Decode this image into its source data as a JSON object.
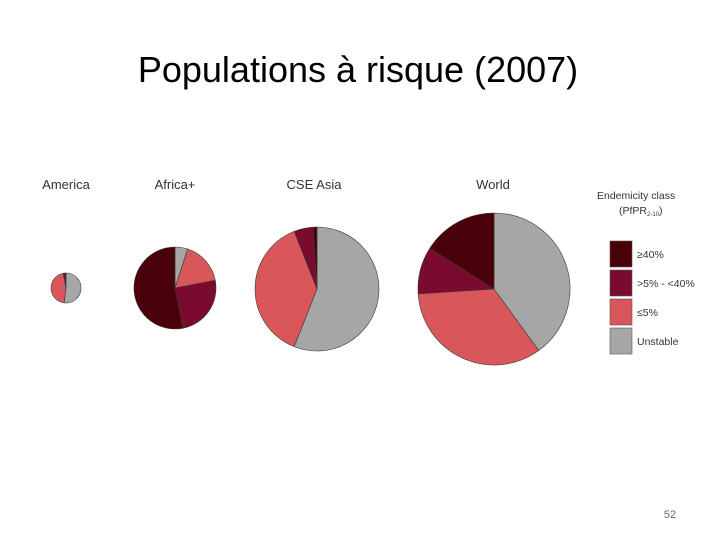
{
  "title": "Populations à risque (2007)",
  "page_number": "52",
  "legend_title": {
    "main": "Endemicity class",
    "open": "(PfPR",
    "sub": "2-10",
    "close": ")"
  },
  "chart_data": [
    {
      "type": "pie",
      "title": "America",
      "categories": [
        "≥40%",
        ">5% - <40%",
        "≤5%",
        "Unstable"
      ],
      "values": [
        1,
        2,
        45,
        52
      ],
      "colors": [
        "#4a0008",
        "#7a0a2e",
        "#d9575a",
        "#a6a6a6"
      ]
    },
    {
      "type": "pie",
      "title": "Africa+",
      "categories": [
        "≥40%",
        ">5% - <40%",
        "≤5%",
        "Unstable"
      ],
      "values": [
        53,
        25,
        17,
        5
      ],
      "colors": [
        "#4a0008",
        "#7a0a2e",
        "#d9575a",
        "#a6a6a6"
      ]
    },
    {
      "type": "pie",
      "title": "CSE Asia",
      "categories": [
        "≥40%",
        ">5% - <40%",
        "≤5%",
        "Unstable"
      ],
      "values": [
        1,
        5,
        38,
        56
      ],
      "colors": [
        "#4a0008",
        "#7a0a2e",
        "#d9575a",
        "#a6a6a6"
      ]
    },
    {
      "type": "pie",
      "title": "World",
      "categories": [
        "≥40%",
        ">5% - <40%",
        "≤5%",
        "Unstable"
      ],
      "values": [
        16,
        10,
        34,
        40
      ],
      "colors": [
        "#4a0008",
        "#7a0a2e",
        "#d9575a",
        "#a6a6a6"
      ]
    }
  ]
}
